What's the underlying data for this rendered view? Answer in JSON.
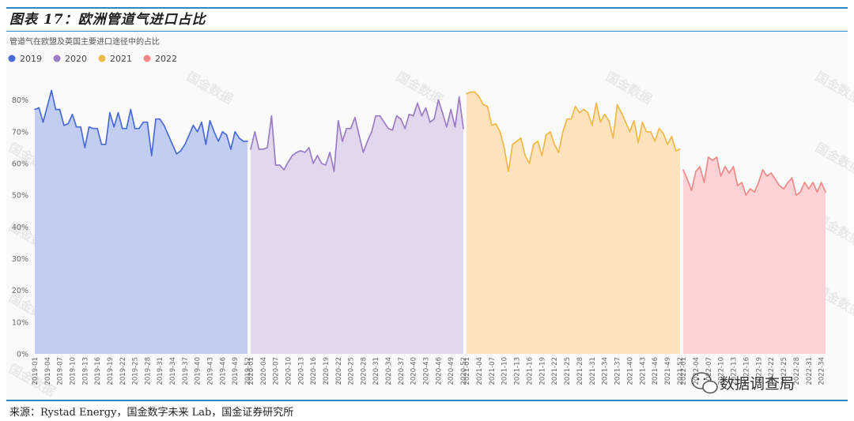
{
  "figure_title": "图表 17：欧洲管道气进口占比",
  "source": "来源：Rystad Energy，国金数字未来 Lab，国金证券研究所",
  "watermark": "国金数据",
  "brand_logo_text": "数据调查局",
  "chart_data": {
    "type": "area",
    "title": "管道气在欧盟及英国主要进口途径中的占比",
    "y_unit": "%",
    "ylim": [
      0,
      85
    ],
    "yticks": [
      0,
      10,
      20,
      30,
      40,
      50,
      60,
      70,
      80
    ],
    "grid": false,
    "legend_position": "top-left",
    "series": [
      {
        "name": "2019",
        "color": "#4a6bd6",
        "fill": "#c2cdf2",
        "x": [
          "2019-01",
          "2019-02",
          "2019-03",
          "2019-04",
          "2019-05",
          "2019-06",
          "2019-07",
          "2019-08",
          "2019-09",
          "2019-10",
          "2019-11",
          "2019-12",
          "2019-13",
          "2019-14",
          "2019-15",
          "2019-16",
          "2019-17",
          "2019-18",
          "2019-19",
          "2019-20",
          "2019-21",
          "2019-22",
          "2019-23",
          "2019-24",
          "2019-25",
          "2019-26",
          "2019-27",
          "2019-28",
          "2019-29",
          "2019-30",
          "2019-31",
          "2019-32",
          "2019-33",
          "2019-34",
          "2019-35",
          "2019-36",
          "2019-37",
          "2019-38",
          "2019-39",
          "2019-40",
          "2019-41",
          "2019-42",
          "2019-43",
          "2019-44",
          "2019-45",
          "2019-46",
          "2019-47",
          "2019-48",
          "2019-49",
          "2019-50",
          "2019-51",
          "2019-52"
        ],
        "values": [
          77,
          77.5,
          73,
          78,
          83,
          77,
          77,
          72,
          72.5,
          75.5,
          71.5,
          71.5,
          65,
          71.5,
          71,
          71,
          66,
          66,
          76,
          71.5,
          76,
          71,
          71,
          77,
          71,
          71,
          73,
          73,
          62.5,
          74,
          74,
          72,
          69,
          66,
          63,
          64,
          66,
          69,
          72,
          70,
          73,
          66,
          73.5,
          70,
          67,
          70,
          69,
          64.5,
          70,
          68,
          67,
          67
        ]
      },
      {
        "name": "2020",
        "color": "#9c7cc4",
        "fill": "#e2d7ec",
        "x": [
          "2020-01",
          "2020-02",
          "2020-03",
          "2020-04",
          "2020-05",
          "2020-06",
          "2020-07",
          "2020-08",
          "2020-09",
          "2020-10",
          "2020-11",
          "2020-12",
          "2020-13",
          "2020-14",
          "2020-15",
          "2020-16",
          "2020-17",
          "2020-18",
          "2020-19",
          "2020-20",
          "2020-21",
          "2020-22",
          "2020-23",
          "2020-24",
          "2020-25",
          "2020-26",
          "2020-27",
          "2020-28",
          "2020-29",
          "2020-30",
          "2020-31",
          "2020-32",
          "2020-33",
          "2020-34",
          "2020-35",
          "2020-36",
          "2020-37",
          "2020-38",
          "2020-39",
          "2020-40",
          "2020-41",
          "2020-42",
          "2020-43",
          "2020-44",
          "2020-45",
          "2020-46",
          "2020-47",
          "2020-48",
          "2020-49",
          "2020-50",
          "2020-51",
          "2020-52"
        ],
        "values": [
          64.5,
          70,
          64.5,
          64.5,
          65,
          75,
          59.5,
          59.5,
          58,
          60.5,
          62.5,
          63.5,
          64,
          63.5,
          65,
          60,
          62.5,
          60,
          59.5,
          63.5,
          57.5,
          73.5,
          67,
          71,
          71,
          74.5,
          69,
          63.5,
          67,
          70,
          75,
          75,
          73,
          71,
          70.5,
          75,
          74,
          71,
          75.5,
          75,
          79,
          75,
          77.5,
          73,
          74,
          80,
          76,
          71.5,
          77,
          71.5,
          81,
          71
        ]
      },
      {
        "name": "2021",
        "color": "#f1b84a",
        "fill": "#fde3bb",
        "x": [
          "2021-01",
          "2021-02",
          "2021-03",
          "2021-04",
          "2021-05",
          "2021-06",
          "2021-07",
          "2021-08",
          "2021-09",
          "2021-10",
          "2021-11",
          "2021-12",
          "2021-13",
          "2021-14",
          "2021-15",
          "2021-16",
          "2021-17",
          "2021-18",
          "2021-19",
          "2021-20",
          "2021-21",
          "2021-22",
          "2021-23",
          "2021-24",
          "2021-25",
          "2021-26",
          "2021-27",
          "2021-28",
          "2021-29",
          "2021-30",
          "2021-31",
          "2021-32",
          "2021-33",
          "2021-34",
          "2021-35",
          "2021-36",
          "2021-37",
          "2021-38",
          "2021-39",
          "2021-40",
          "2021-41",
          "2021-42",
          "2021-43",
          "2021-44",
          "2021-45",
          "2021-46",
          "2021-47",
          "2021-48",
          "2021-49",
          "2021-50",
          "2021-51",
          "2021-52"
        ],
        "values": [
          82,
          82.5,
          82.5,
          81,
          78.5,
          78,
          72,
          72.5,
          70,
          65,
          57.5,
          66,
          67,
          68,
          62.5,
          60,
          66,
          67,
          62.5,
          69,
          70,
          66,
          63.5,
          70,
          74,
          74,
          78,
          76,
          77,
          76,
          72,
          79,
          73,
          75.5,
          73.5,
          68,
          78.5,
          76,
          73,
          70,
          73.5,
          66.5,
          73,
          70,
          70,
          67,
          71,
          69.5,
          66,
          68.5,
          64,
          64.5
        ]
      },
      {
        "name": "2022",
        "color": "#f08a8a",
        "fill": "#fcd2d4",
        "x": [
          "2022-01",
          "2022-02",
          "2022-03",
          "2022-04",
          "2022-05",
          "2022-06",
          "2022-07",
          "2022-08",
          "2022-09",
          "2022-10",
          "2022-11",
          "2022-12",
          "2022-13",
          "2022-14",
          "2022-15",
          "2022-16",
          "2022-17",
          "2022-18",
          "2022-19",
          "2022-20",
          "2022-21",
          "2022-22",
          "2022-23",
          "2022-24",
          "2022-25",
          "2022-26",
          "2022-27",
          "2022-28",
          "2022-29",
          "2022-30",
          "2022-31",
          "2022-32",
          "2022-33",
          "2022-34",
          "2022-35"
        ],
        "values": [
          58,
          55,
          51.5,
          57.5,
          59,
          54,
          62,
          61,
          62,
          56,
          59,
          57,
          59,
          53,
          54,
          50,
          52,
          51,
          54,
          58,
          56,
          57,
          55,
          53,
          52,
          54,
          55.5,
          50,
          51,
          54,
          52,
          54,
          51,
          54,
          51
        ]
      }
    ]
  }
}
